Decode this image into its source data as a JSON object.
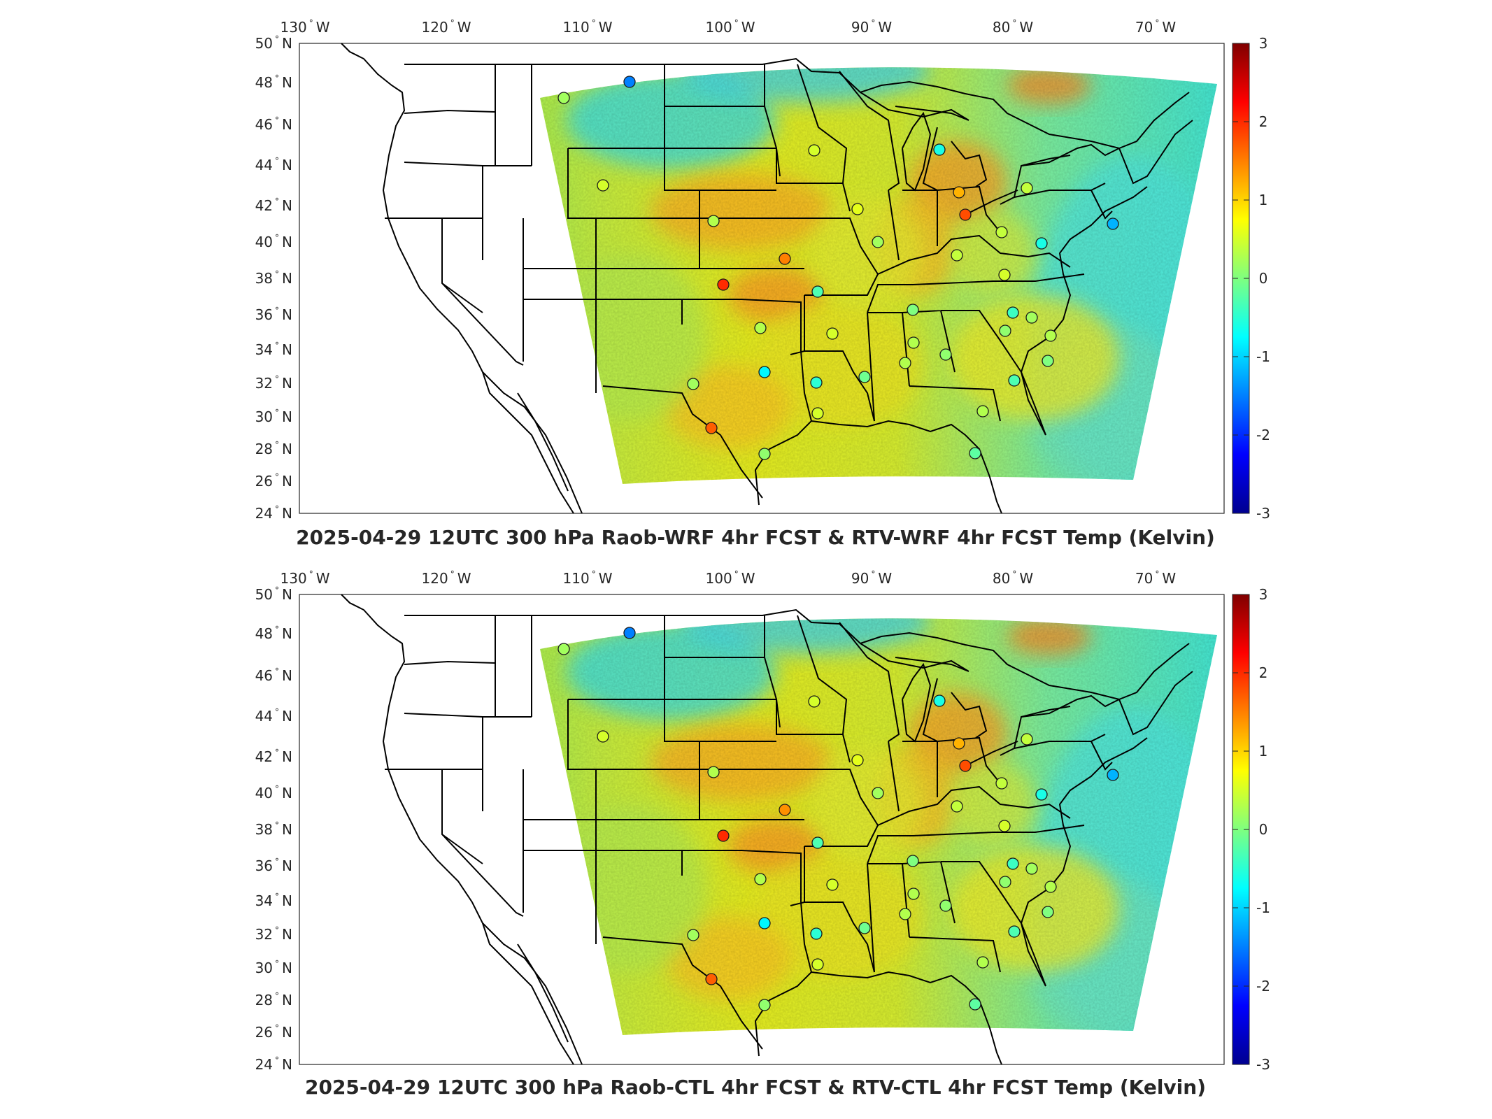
{
  "panels": [
    {
      "title": "2025-04-29 12UTC 300 hPa Raob-WRF 4hr FCST & RTV-WRF 4hr FCST Temp (Kelvin)",
      "lon_ticks": [
        "130",
        "120",
        "110",
        "100",
        "90",
        "80",
        "70"
      ],
      "lon_hemi": "W",
      "lat_ticks": [
        "50",
        "48",
        "46",
        "44",
        "42",
        "40",
        "38",
        "36",
        "34",
        "32",
        "30",
        "28",
        "26",
        "24"
      ],
      "lat_hemi": "N",
      "colorbar_ticks": [
        "3",
        "2",
        "1",
        "0",
        "-1",
        "-2",
        "-3"
      ],
      "station_values": [
        0.2,
        -1.5,
        0.5,
        0.3,
        0.5,
        -0.6,
        1.2,
        0.4,
        1.5,
        2.0,
        -0.3,
        0.6,
        1.8,
        0.4,
        0.2,
        0.4,
        0.0,
        -0.4,
        0.5,
        0.3,
        0.5,
        -0.5,
        0.3,
        -0.8,
        0.1,
        1.7,
        0.2,
        -0.1,
        0.3,
        0.5,
        0.3,
        0.1,
        0.2,
        0.3,
        0.0,
        -0.3,
        0.1,
        -0.2,
        -0.6,
        -1.2
      ]
    },
    {
      "title": "2025-04-29 12UTC 300 hPa Raob-CTL 4hr FCST & RTV-CTL 4hr FCST Temp (Kelvin)",
      "lon_ticks": [
        "130",
        "120",
        "110",
        "100",
        "90",
        "80",
        "70"
      ],
      "lon_hemi": "W",
      "lat_ticks": [
        "50",
        "48",
        "46",
        "44",
        "42",
        "40",
        "38",
        "36",
        "34",
        "32",
        "30",
        "28",
        "26",
        "24"
      ],
      "lat_hemi": "N",
      "colorbar_ticks": [
        "3",
        "2",
        "1",
        "0",
        "-1",
        "-2",
        "-3"
      ],
      "station_values": [
        0.2,
        -1.5,
        0.5,
        0.3,
        0.5,
        -0.6,
        1.2,
        0.4,
        1.4,
        2.0,
        -0.3,
        0.6,
        1.8,
        0.4,
        0.2,
        0.4,
        0.0,
        -0.4,
        0.5,
        0.3,
        0.5,
        -0.5,
        0.3,
        -0.8,
        0.1,
        1.7,
        0.2,
        -0.1,
        0.3,
        0.5,
        0.3,
        0.1,
        0.2,
        0.3,
        0.0,
        -0.3,
        0.1,
        -0.2,
        -0.6,
        -1.2
      ]
    }
  ],
  "colormap": "jet",
  "colorbar_range": [
    -3,
    3
  ]
}
